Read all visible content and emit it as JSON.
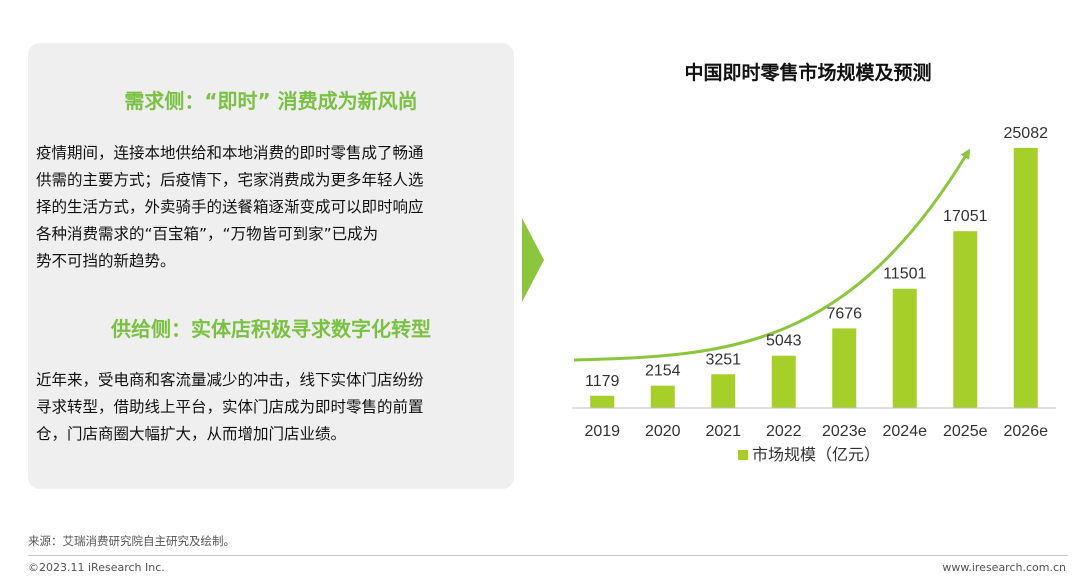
{
  "left_panel": {
    "demand_heading": "需求侧：“即时” 消费成为新风尚",
    "demand_lines": [
      "疫情期间，连接本地供给和本地消费的即时零售成了畅通",
      "供需的主要方式；后疫情下，宅家消费成为更多年轻人选",
      "择的生活方式，外卖骑手的送餐箱逐渐变成可以即时响应",
      "各种消费需求的“百宝箱”，“万物皆可到家”已成为",
      "势不可挡的新趋势。"
    ],
    "supply_heading": "供给侧：实体店积极寻求数字化转型",
    "supply_lines": [
      "近年来，受电商和客流量减少的冲击，线下实体门店纷纷",
      "寻求转型，借助线上平台，实体门店成为即时零售的前置",
      "仓，门店商圈大幅扩大，从而增加门店业绩。"
    ]
  },
  "colors": {
    "accent_green": "#7ac143",
    "bar_green": "#a6cf2a",
    "panel_bg": "#efefef"
  },
  "chart_data": {
    "type": "bar",
    "title": "中国即时零售市场规模及预测",
    "categories": [
      "2019",
      "2020",
      "2021",
      "2022",
      "2023e",
      "2024e",
      "2025e",
      "2026e"
    ],
    "series": [
      {
        "name": "市场规模（亿元）",
        "values": [
          1179,
          2154,
          3251,
          5043,
          7676,
          11501,
          17051,
          25082
        ]
      }
    ],
    "ylim": [
      0,
      27000
    ],
    "grid": false,
    "legend": "bottom",
    "trend_arrow": true
  },
  "footer": {
    "source": "来源：艾瑞消费研究院自主研究及绘制。",
    "copyright": "©2023.11 iResearch Inc.",
    "website": "www.iresearch.com.cn"
  }
}
